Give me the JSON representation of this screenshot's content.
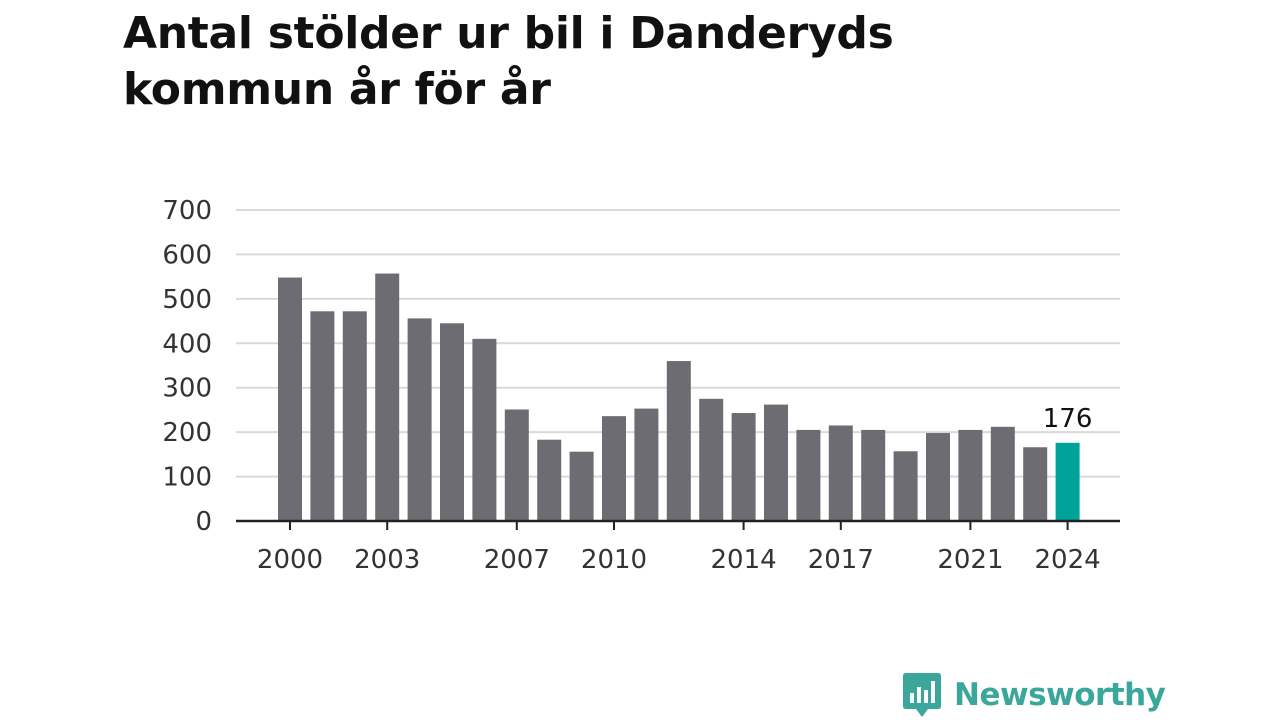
{
  "title_lines": [
    "Antal stölder ur bil i Danderyds",
    "kommun år för år"
  ],
  "brand": {
    "name": "Newsworthy",
    "color": "#3aa79a"
  },
  "colors": {
    "bar": "#6d6c72",
    "highlight": "#00a39a",
    "grid": "#d9d9d9",
    "axis": "#222222"
  },
  "chart_data": {
    "type": "bar",
    "title": "Antal stölder ur bil i Danderyds kommun år för år",
    "categories": [
      "2000",
      "2001",
      "2002",
      "2003",
      "2004",
      "2005",
      "2006",
      "2007",
      "2008",
      "2009",
      "2010",
      "2011",
      "2012",
      "2013",
      "2014",
      "2015",
      "2016",
      "2017",
      "2018",
      "2019",
      "2020",
      "2021",
      "2022",
      "2023",
      "2024"
    ],
    "values": [
      548,
      472,
      472,
      557,
      456,
      445,
      410,
      251,
      183,
      156,
      236,
      253,
      360,
      275,
      243,
      262,
      205,
      215,
      205,
      157,
      198,
      205,
      212,
      166,
      176
    ],
    "x_tick_labels": [
      "2000",
      "2003",
      "2007",
      "2010",
      "2014",
      "2017",
      "2021",
      "2024"
    ],
    "y_ticks": [
      0,
      100,
      200,
      300,
      400,
      500,
      600,
      700
    ],
    "ylim": [
      0,
      700
    ],
    "grid": true,
    "highlight_category": "2024",
    "data_labels": [
      {
        "category": "2024",
        "text": "176"
      }
    ]
  }
}
